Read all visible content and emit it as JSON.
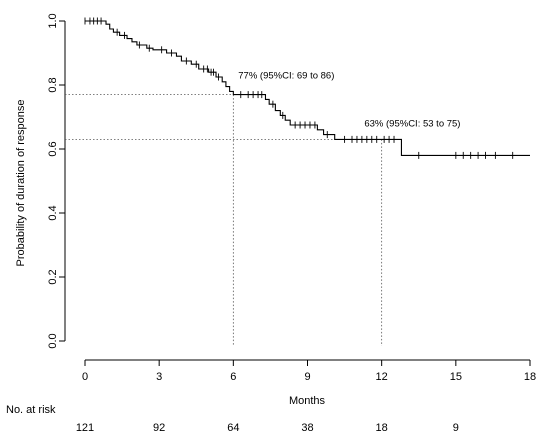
{
  "chart_data": {
    "type": "line",
    "title": "",
    "xlabel": "Months",
    "ylabel": "Probability of duration of response",
    "xlim": [
      0,
      18
    ],
    "ylim": [
      0,
      1
    ],
    "x_ticks": [
      0,
      3,
      6,
      9,
      12,
      15,
      18
    ],
    "y_ticks": [
      0.0,
      0.2,
      0.4,
      0.6,
      0.8,
      1.0
    ],
    "y_tick_labels": [
      "0.0",
      "0.2",
      "0.4",
      "0.6",
      "0.8",
      "1.0"
    ],
    "grid": false,
    "series": [
      {
        "step_points": [
          [
            0,
            1.0
          ],
          [
            0.85,
            0.99
          ],
          [
            1.0,
            0.975
          ],
          [
            1.15,
            0.965
          ],
          [
            1.4,
            0.955
          ],
          [
            1.7,
            0.945
          ],
          [
            1.9,
            0.935
          ],
          [
            2.1,
            0.925
          ],
          [
            2.5,
            0.915
          ],
          [
            2.75,
            0.91
          ],
          [
            3.3,
            0.9
          ],
          [
            3.7,
            0.89
          ],
          [
            3.9,
            0.875
          ],
          [
            4.3,
            0.865
          ],
          [
            4.6,
            0.85
          ],
          [
            5.0,
            0.84
          ],
          [
            5.3,
            0.825
          ],
          [
            5.55,
            0.81
          ],
          [
            5.7,
            0.795
          ],
          [
            5.85,
            0.78
          ],
          [
            6.0,
            0.77
          ],
          [
            7.3,
            0.755
          ],
          [
            7.45,
            0.74
          ],
          [
            7.7,
            0.72
          ],
          [
            7.9,
            0.705
          ],
          [
            8.1,
            0.69
          ],
          [
            8.3,
            0.675
          ],
          [
            9.4,
            0.66
          ],
          [
            9.65,
            0.645
          ],
          [
            10.1,
            0.63
          ],
          [
            12.8,
            0.58
          ],
          [
            18.0,
            0.58
          ]
        ],
        "censor_x": [
          0,
          0.2,
          0.35,
          0.5,
          0.65,
          1.3,
          1.6,
          2.2,
          2.6,
          3.1,
          3.5,
          4.1,
          4.5,
          4.8,
          4.95,
          5.1,
          5.2,
          5.4,
          6.3,
          6.6,
          6.8,
          7.0,
          7.15,
          7.6,
          8.0,
          8.5,
          8.7,
          8.9,
          9.1,
          9.3,
          9.8,
          10.5,
          10.8,
          11.0,
          11.2,
          11.4,
          11.6,
          11.8,
          12.1,
          12.3,
          12.5,
          13.5,
          15.0,
          15.3,
          15.6,
          15.9,
          16.2,
          16.6,
          17.3
        ]
      }
    ],
    "reference_lines": [
      {
        "x": 6,
        "y": 0.77
      },
      {
        "x": 12,
        "y": 0.63
      }
    ],
    "annotations": [
      {
        "text": "77% (95%CI: 69 to 86)",
        "x": 6.2,
        "y": 0.82
      },
      {
        "text": "63% (95%CI: 53 to 75)",
        "x": 11.3,
        "y": 0.67
      }
    ],
    "at_risk": {
      "label": "No. at risk",
      "x": [
        0,
        3,
        6,
        9,
        12,
        15
      ],
      "values": [
        "121",
        "92",
        "64",
        "38",
        "18",
        "9"
      ]
    },
    "colors": {
      "curve": "#000000",
      "reference": "#555555",
      "axis": "#000000"
    }
  }
}
